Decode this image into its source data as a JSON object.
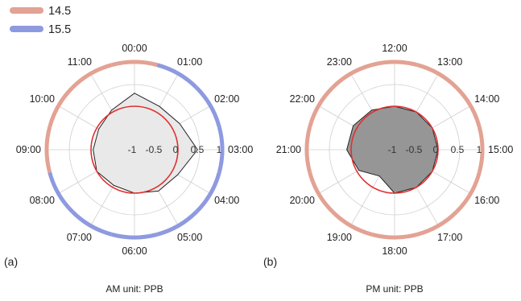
{
  "legend": [
    {
      "label": "14.5",
      "color": "#e3a293"
    },
    {
      "label": "15.5",
      "color": "#8e9ae0"
    }
  ],
  "chart_data": [
    {
      "type": "radar",
      "panel_label": "(a)",
      "caption": "AM unit: PPB",
      "hours": [
        "00:00",
        "01:00",
        "02:00",
        "03:00",
        "04:00",
        "05:00",
        "06:00",
        "07:00",
        "08:00",
        "09:00",
        "10:00",
        "11:00"
      ],
      "radial_ticks": [
        "-1",
        "-0.5",
        "0",
        "0.5",
        "1"
      ],
      "rlim": [
        -1,
        1
      ],
      "values": [
        0.3,
        0.15,
        0.2,
        0.45,
        0.15,
        0.1,
        0.0,
        -0.05,
        0.0,
        -0.05,
        -0.05,
        0.05
      ],
      "reference_value": 0,
      "outer_ring": [
        "#e3a293",
        "#8e9ae0",
        "#8e9ae0",
        "#8e9ae0",
        "#8e9ae0",
        "#8e9ae0",
        "#8e9ae0",
        "#8e9ae0",
        "#8e9ae0",
        "#e3a293",
        "#e3a293",
        "#e3a293"
      ],
      "fill_color": "#e9e9e9",
      "line_color": "#222222",
      "reference_color": "#e03030"
    },
    {
      "type": "radar",
      "panel_label": "(b)",
      "caption": "PM  unit: PPB",
      "hours": [
        "12:00",
        "13:00",
        "14:00",
        "15:00",
        "16:00",
        "17:00",
        "18:00",
        "19:00",
        "20:00",
        "21:00",
        "22:00",
        "23:00"
      ],
      "radial_ticks": [
        "-1",
        "-0.5",
        "0",
        "0.5",
        "1"
      ],
      "rlim": [
        -1,
        1
      ],
      "values": [
        0.0,
        0.0,
        0.0,
        0.0,
        0.0,
        0.0,
        0.0,
        -0.3,
        -0.05,
        0.1,
        0.1,
        0.05
      ],
      "reference_value": 0,
      "outer_ring": [
        "#e3a293",
        "#e3a293",
        "#e3a293",
        "#e3a293",
        "#e3a293",
        "#e3a293",
        "#e3a293",
        "#e3a293",
        "#e3a293",
        "#e3a293",
        "#e3a293",
        "#e3a293"
      ],
      "fill_color": "#969696",
      "line_color": "#222222",
      "reference_color": "#e03030"
    }
  ]
}
